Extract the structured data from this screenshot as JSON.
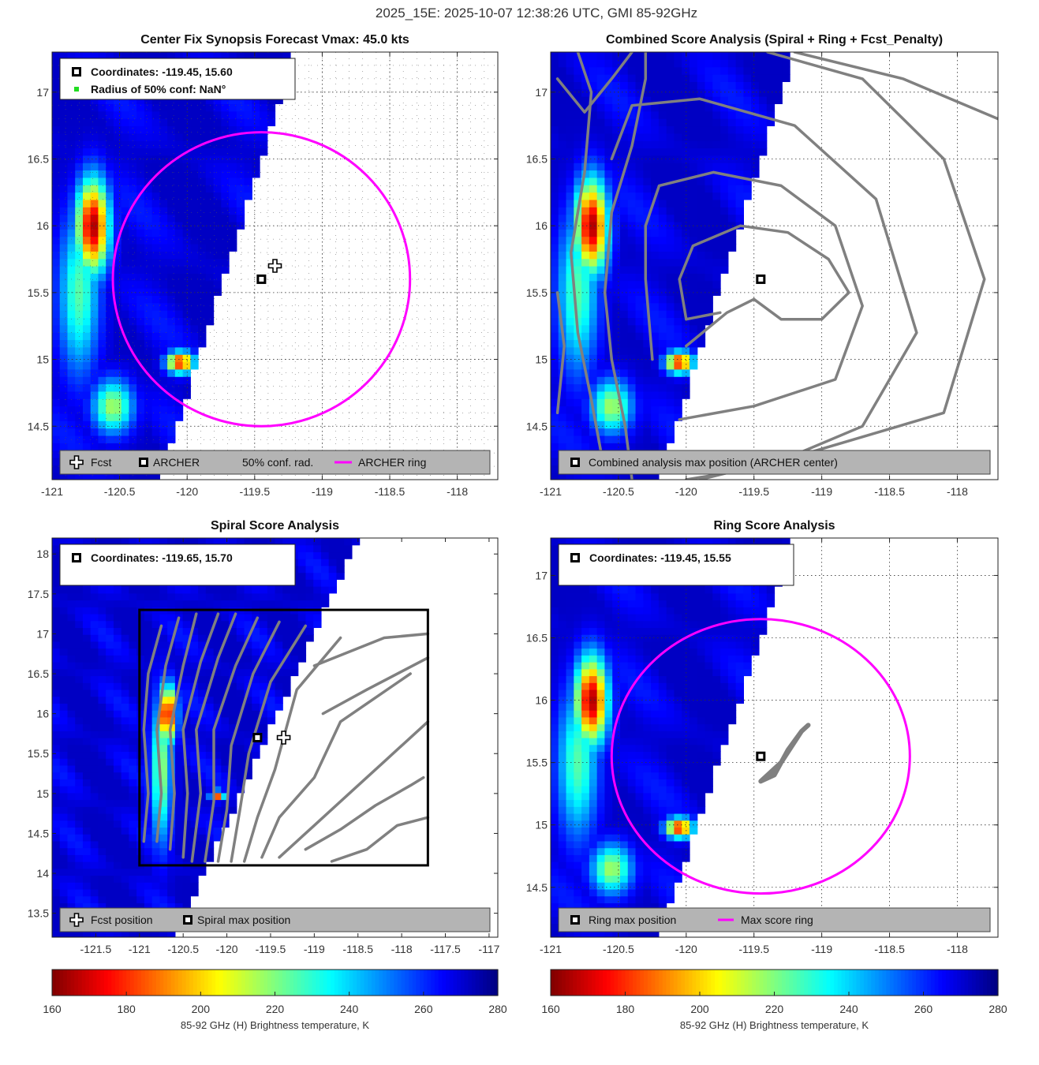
{
  "figure_title": "2025_15E: 2025-10-07 12:38:26 UTC, GMI 85-92GHz",
  "colors": {
    "ring": "#ff00ff",
    "contour": "#808080",
    "box": "#000000",
    "legend_bg": "#b4b4b4"
  },
  "chart_data": [
    {
      "id": "p1",
      "type": "heatmap",
      "title": "Center Fix Synopsis     Forecast Vmax: 45.0 kts",
      "xlim": [
        -121.0,
        -117.7
      ],
      "ylim": [
        14.1,
        17.3
      ],
      "xticks": [
        -121,
        -120.5,
        -120,
        -119.5,
        -119,
        -118.5,
        -118
      ],
      "yticks": [
        14.5,
        15,
        15.5,
        16,
        16.5,
        17
      ],
      "grid": "dense",
      "swath_edge": [
        [
          -120.2,
          14.1
        ],
        [
          -119.2,
          17.3
        ]
      ],
      "cold_spots": [
        [
          -120.7,
          16.0,
          0.12,
          0.35,
          165
        ],
        [
          -120.05,
          14.98,
          0.1,
          0.08,
          175
        ],
        [
          -120.55,
          14.65,
          0.15,
          0.2,
          215
        ],
        [
          -120.8,
          15.5,
          0.15,
          0.6,
          225
        ]
      ],
      "ring": {
        "center": [
          -119.45,
          15.6
        ],
        "radius_deg": 1.1
      },
      "markers": [
        {
          "kind": "archer",
          "x": -119.45,
          "y": 15.6
        },
        {
          "kind": "fcst",
          "x": -119.35,
          "y": 15.7
        }
      ],
      "contours": [],
      "top_legend": [
        "Coordinates: -119.45, 15.60",
        "Radius of 50% conf: NaN°"
      ],
      "bottom_legend": [
        "Fcst",
        "ARCHER",
        "50% conf. rad.",
        "ARCHER ring"
      ]
    },
    {
      "id": "p2",
      "type": "heatmap",
      "title": "Combined Score Analysis (Spiral + Ring + Fcst_Penalty)",
      "xlim": [
        -121.0,
        -117.7
      ],
      "ylim": [
        14.1,
        17.3
      ],
      "xticks": [
        -121,
        -120.5,
        -120,
        -119.5,
        -119,
        -118.5,
        -118
      ],
      "yticks": [
        14.5,
        15,
        15.5,
        16,
        16.5,
        17
      ],
      "grid": "sparse",
      "swath_edge": [
        [
          -120.2,
          14.1
        ],
        [
          -119.2,
          17.3
        ]
      ],
      "cold_spots": [
        [
          -120.7,
          16.0,
          0.12,
          0.35,
          165
        ],
        [
          -120.05,
          14.98,
          0.1,
          0.08,
          175
        ],
        [
          -120.55,
          14.65,
          0.15,
          0.2,
          215
        ],
        [
          -120.8,
          15.5,
          0.15,
          0.6,
          225
        ]
      ],
      "markers": [
        {
          "kind": "archer",
          "x": -119.45,
          "y": 15.6
        }
      ],
      "contours": [
        [
          [
            -120.0,
            15.1
          ],
          [
            -119.7,
            15.35
          ],
          [
            -119.5,
            15.45
          ],
          [
            -119.3,
            15.3
          ],
          [
            -119.0,
            15.3
          ],
          [
            -118.8,
            15.5
          ],
          [
            -118.95,
            15.75
          ],
          [
            -119.25,
            15.95
          ],
          [
            -119.6,
            16.0
          ],
          [
            -119.95,
            15.85
          ],
          [
            -120.05,
            15.6
          ],
          [
            -120.0,
            15.3
          ],
          [
            -119.75,
            15.35
          ]
        ],
        [
          [
            -120.05,
            14.55
          ],
          [
            -119.5,
            14.65
          ],
          [
            -118.9,
            14.85
          ],
          [
            -118.7,
            15.4
          ],
          [
            -118.9,
            16.0
          ],
          [
            -119.3,
            16.3
          ],
          [
            -119.8,
            16.4
          ],
          [
            -120.2,
            16.3
          ],
          [
            -120.3,
            16.0
          ],
          [
            -120.3,
            15.6
          ],
          [
            -120.25,
            15.0
          ]
        ],
        [
          [
            -120.0,
            14.1
          ],
          [
            -119.4,
            14.2
          ],
          [
            -118.7,
            14.5
          ],
          [
            -118.3,
            15.2
          ],
          [
            -118.6,
            16.2
          ],
          [
            -119.2,
            16.75
          ],
          [
            -119.9,
            16.95
          ],
          [
            -120.4,
            16.9
          ],
          [
            -120.55,
            16.5
          ]
        ],
        [
          [
            -119.9,
            14.1
          ],
          [
            -119.1,
            14.3
          ],
          [
            -118.1,
            14.6
          ],
          [
            -117.8,
            15.6
          ],
          [
            -118.1,
            16.5
          ],
          [
            -118.7,
            17.1
          ],
          [
            -119.4,
            17.3
          ]
        ],
        [
          [
            -119.2,
            17.3
          ],
          [
            -118.4,
            17.1
          ],
          [
            -117.7,
            16.8
          ]
        ],
        [
          [
            -120.4,
            14.1
          ],
          [
            -120.45,
            14.5
          ],
          [
            -120.55,
            15.0
          ],
          [
            -120.6,
            15.5
          ],
          [
            -120.55,
            16.1
          ],
          [
            -120.4,
            16.6
          ],
          [
            -120.3,
            17.1
          ],
          [
            -120.3,
            17.3
          ]
        ],
        [
          [
            -120.6,
            14.15
          ],
          [
            -120.7,
            14.7
          ],
          [
            -120.8,
            15.2
          ],
          [
            -120.85,
            15.8
          ],
          [
            -120.75,
            16.4
          ],
          [
            -120.7,
            17.0
          ],
          [
            -120.8,
            17.3
          ]
        ],
        [
          [
            -120.95,
            17.1
          ],
          [
            -120.75,
            16.85
          ],
          [
            -120.55,
            17.1
          ],
          [
            -120.4,
            17.3
          ]
        ],
        [
          [
            -120.95,
            14.6
          ],
          [
            -120.9,
            15.1
          ],
          [
            -120.95,
            15.5
          ]
        ]
      ],
      "top_legend": [],
      "bottom_legend": [
        "Combined analysis max position (ARCHER center)"
      ]
    },
    {
      "id": "p3",
      "type": "heatmap",
      "title": "Spiral Score Analysis",
      "xlim": [
        -122.0,
        -116.9
      ],
      "ylim": [
        13.2,
        18.2
      ],
      "xticks": [
        -121.5,
        -121,
        -120.5,
        -120,
        -119.5,
        -119,
        -118.5,
        -118,
        -117.5,
        -117
      ],
      "yticks": [
        13.5,
        14,
        14.5,
        15,
        15.5,
        16,
        16.5,
        17,
        17.5,
        18
      ],
      "grid": "none",
      "swath_edge": [
        [
          -120.6,
          13.2
        ],
        [
          -118.5,
          18.2
        ]
      ],
      "cold_spots": [
        [
          -120.68,
          16.0,
          0.1,
          0.35,
          165
        ],
        [
          -120.1,
          14.98,
          0.08,
          0.06,
          180
        ],
        [
          -120.75,
          15.3,
          0.12,
          0.9,
          218
        ]
      ],
      "box": [
        [
          -121.0,
          14.1
        ],
        [
          -117.7,
          17.3
        ]
      ],
      "markers": [
        {
          "kind": "archer",
          "x": -119.65,
          "y": 15.7
        },
        {
          "kind": "fcst",
          "x": -119.35,
          "y": 15.7
        }
      ],
      "contours": [
        [
          [
            -120.95,
            14.4
          ],
          [
            -120.9,
            15.0
          ],
          [
            -120.95,
            15.8
          ],
          [
            -120.9,
            16.5
          ],
          [
            -120.75,
            17.1
          ]
        ],
        [
          [
            -120.8,
            14.4
          ],
          [
            -120.75,
            15.0
          ],
          [
            -120.8,
            15.8
          ],
          [
            -120.7,
            16.6
          ],
          [
            -120.55,
            17.2
          ]
        ],
        [
          [
            -120.65,
            14.3
          ],
          [
            -120.6,
            15.0
          ],
          [
            -120.65,
            15.8
          ],
          [
            -120.5,
            16.6
          ],
          [
            -120.35,
            17.25
          ]
        ],
        [
          [
            -120.5,
            14.2
          ],
          [
            -120.45,
            15.0
          ],
          [
            -120.5,
            15.8
          ],
          [
            -120.3,
            16.65
          ],
          [
            -120.1,
            17.25
          ]
        ],
        [
          [
            -120.4,
            14.15
          ],
          [
            -120.3,
            15.0
          ],
          [
            -120.35,
            15.8
          ],
          [
            -120.1,
            16.7
          ],
          [
            -119.9,
            17.25
          ]
        ],
        [
          [
            -120.25,
            14.15
          ],
          [
            -120.15,
            14.9
          ],
          [
            -120.15,
            15.8
          ],
          [
            -119.9,
            16.6
          ],
          [
            -119.65,
            17.2
          ]
        ],
        [
          [
            -120.1,
            14.15
          ],
          [
            -120.0,
            14.8
          ],
          [
            -119.95,
            15.6
          ],
          [
            -119.7,
            16.5
          ],
          [
            -119.4,
            17.15
          ]
        ],
        [
          [
            -119.95,
            14.15
          ],
          [
            -119.85,
            14.8
          ],
          [
            -119.75,
            15.5
          ],
          [
            -119.5,
            16.4
          ],
          [
            -119.1,
            17.1
          ]
        ],
        [
          [
            -119.8,
            14.15
          ],
          [
            -119.65,
            14.7
          ],
          [
            -119.45,
            15.3
          ],
          [
            -119.2,
            16.3
          ],
          [
            -118.7,
            16.95
          ]
        ],
        [
          [
            -119.6,
            14.2
          ],
          [
            -119.4,
            14.7
          ],
          [
            -119.0,
            15.2
          ],
          [
            -118.7,
            15.9
          ],
          [
            -117.9,
            16.5
          ]
        ],
        [
          [
            -119.4,
            14.2
          ],
          [
            -119.0,
            14.6
          ],
          [
            -118.6,
            15.0
          ],
          [
            -118.2,
            15.4
          ],
          [
            -117.7,
            15.9
          ]
        ],
        [
          [
            -119.1,
            14.3
          ],
          [
            -118.7,
            14.55
          ],
          [
            -118.3,
            14.85
          ],
          [
            -117.9,
            15.1
          ],
          [
            -117.75,
            15.2
          ]
        ],
        [
          [
            -118.9,
            16.0
          ],
          [
            -118.4,
            16.3
          ],
          [
            -117.7,
            16.7
          ]
        ],
        [
          [
            -119.0,
            16.6
          ],
          [
            -118.2,
            16.95
          ],
          [
            -117.7,
            17.0
          ]
        ],
        [
          [
            -118.8,
            14.15
          ],
          [
            -118.4,
            14.3
          ],
          [
            -118.05,
            14.6
          ],
          [
            -117.7,
            14.7
          ]
        ]
      ],
      "top_legend": [
        "Coordinates: -119.65, 15.70"
      ],
      "bottom_legend": [
        "Fcst position",
        "Spiral max position"
      ]
    },
    {
      "id": "p4",
      "type": "heatmap",
      "title": "Ring Score Analysis",
      "xlim": [
        -121.0,
        -117.7
      ],
      "ylim": [
        14.1,
        17.3
      ],
      "xticks": [
        -121,
        -120.5,
        -120,
        -119.5,
        -119,
        -118.5,
        -118
      ],
      "yticks": [
        14.5,
        15,
        15.5,
        16,
        16.5,
        17
      ],
      "grid": "sparse",
      "swath_edge": [
        [
          -120.2,
          14.1
        ],
        [
          -119.2,
          17.3
        ]
      ],
      "cold_spots": [
        [
          -120.7,
          16.0,
          0.12,
          0.35,
          165
        ],
        [
          -120.05,
          14.98,
          0.1,
          0.08,
          175
        ],
        [
          -120.55,
          14.65,
          0.15,
          0.2,
          215
        ],
        [
          -120.8,
          15.5,
          0.15,
          0.6,
          225
        ]
      ],
      "ring": {
        "center": [
          -119.45,
          15.55
        ],
        "radius_deg": 1.1
      },
      "score_blob": [
        [
          -119.35,
          15.4
        ],
        [
          -119.25,
          15.6
        ],
        [
          -119.15,
          15.75
        ],
        [
          -119.1,
          15.8
        ],
        [
          -119.15,
          15.75
        ],
        [
          -119.3,
          15.5
        ],
        [
          -119.45,
          15.35
        ],
        [
          -119.35,
          15.4
        ]
      ],
      "markers": [
        {
          "kind": "archer",
          "x": -119.45,
          "y": 15.55
        }
      ],
      "contours": [],
      "top_legend": [
        "Coordinates: -119.45, 15.55"
      ],
      "bottom_legend": [
        "Ring max position",
        "Max score ring"
      ]
    }
  ],
  "colorbars": [
    {
      "ticks": [
        160,
        180,
        200,
        220,
        240,
        260,
        280
      ],
      "range": [
        160,
        280
      ],
      "label": "85-92 GHz (H) Brightness temperature, K"
    },
    {
      "ticks": [
        160,
        180,
        200,
        220,
        240,
        260,
        280
      ],
      "range": [
        160,
        280
      ],
      "label": "85-92 GHz (H) Brightness temperature, K"
    }
  ]
}
